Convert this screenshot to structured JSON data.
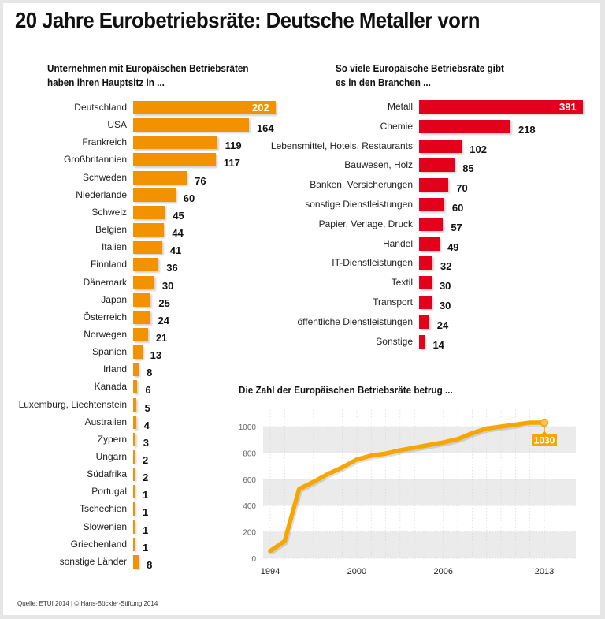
{
  "title": "20 Jahre Eurobetriebsräte: Deutsche Metaller vorn",
  "footer": "Quelle: ETUI 2014 | © Hans-Böckler-Stiftung 2014",
  "colors": {
    "orange": "#f39200",
    "red": "#e2001a",
    "line": "#f7a600",
    "band": "#ebebeb"
  },
  "chart_data": [
    {
      "type": "bar",
      "orientation": "horizontal",
      "title": "Unternehmen mit Europäischen Betriebsräten haben ihren Hauptsitz in ...",
      "title_lines": [
        "Unternehmen mit Europäischen Betriebsräten",
        "haben ihren Hauptsitz in ..."
      ],
      "categories": [
        "Deutschland",
        "USA",
        "Frankreich",
        "Großbritannien",
        "Schweden",
        "Niederlande",
        "Schweiz",
        "Belgien",
        "Italien",
        "Finnland",
        "Dänemark",
        "Japan",
        "Österreich",
        "Norwegen",
        "Spanien",
        "Irland",
        "Kanada",
        "Luxemburg, Liechtenstein",
        "Australien",
        "Zypern",
        "Ungarn",
        "Südafrika",
        "Portugal",
        "Tschechien",
        "Slowenien",
        "Griechenland",
        "sonstige Länder"
      ],
      "values": [
        202,
        164,
        119,
        117,
        76,
        60,
        45,
        44,
        41,
        36,
        30,
        25,
        24,
        21,
        13,
        8,
        6,
        5,
        4,
        3,
        2,
        2,
        1,
        1,
        1,
        1,
        8
      ],
      "color": "#f39200",
      "xlabel": "",
      "ylabel": ""
    },
    {
      "type": "bar",
      "orientation": "horizontal",
      "title": "So viele Europäische Betriebsräte gibt es in den Branchen ...",
      "title_lines": [
        "So viele Europäische Betriebsräte gibt",
        "es in den Branchen ..."
      ],
      "categories": [
        "Metall",
        "Chemie",
        "Lebensmittel, Hotels, Restaurants",
        "Bauwesen, Holz",
        "Banken, Versicherungen",
        "sonstige Dienstleistungen",
        "Papier, Verlage, Druck",
        "Handel",
        "IT-Dienstleistungen",
        "Textil",
        "Transport",
        "öffentliche Dienstleistungen",
        "Sonstige"
      ],
      "values": [
        391,
        218,
        102,
        85,
        70,
        60,
        57,
        49,
        32,
        30,
        30,
        24,
        14
      ],
      "color": "#e2001a",
      "xlabel": "",
      "ylabel": ""
    },
    {
      "type": "line",
      "title": "Die Zahl der Europäischen Betriebsräte betrug ...",
      "x": [
        1994,
        1995,
        1996,
        1997,
        1998,
        1999,
        2000,
        2001,
        2002,
        2003,
        2004,
        2005,
        2006,
        2007,
        2008,
        2009,
        2010,
        2011,
        2012,
        2013
      ],
      "series": [
        {
          "name": "Europäische Betriebsräte",
          "values": [
            55,
            130,
            525,
            580,
            640,
            690,
            750,
            780,
            795,
            820,
            840,
            860,
            880,
            905,
            950,
            985,
            1000,
            1015,
            1030,
            1030
          ]
        }
      ],
      "xticks": [
        "1994",
        "2000",
        "2006",
        "2013"
      ],
      "yticks": [
        "0",
        "200",
        "400",
        "600",
        "800",
        "1000"
      ],
      "ylim": [
        0,
        1100
      ],
      "xlim": [
        1994,
        2015
      ],
      "annotation": {
        "x": 2013,
        "label": "1030"
      },
      "grid": true,
      "xlabel": "",
      "ylabel": ""
    }
  ]
}
